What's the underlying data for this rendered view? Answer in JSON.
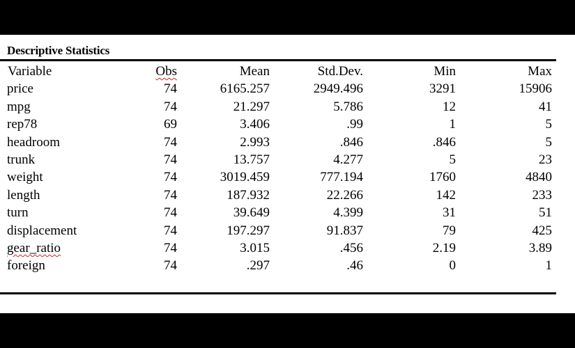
{
  "title": "Descriptive Statistics",
  "columns": [
    "Variable",
    "Obs",
    "Mean",
    "Std.Dev.",
    "Min",
    "Max"
  ],
  "rows": [
    {
      "variable": "price",
      "obs": "74",
      "mean": "6165.257",
      "sd": "2949.496",
      "min": "3291",
      "max": "15906"
    },
    {
      "variable": "mpg",
      "obs": "74",
      "mean": "21.297",
      "sd": "5.786",
      "min": "12",
      "max": "41"
    },
    {
      "variable": "rep78",
      "obs": "69",
      "mean": "3.406",
      "sd": ".99",
      "min": "1",
      "max": "5"
    },
    {
      "variable": "headroom",
      "obs": "74",
      "mean": "2.993",
      "sd": ".846",
      "min": ".846",
      "max": "5"
    },
    {
      "variable": "trunk",
      "obs": "74",
      "mean": "13.757",
      "sd": "4.277",
      "min": "5",
      "max": "23"
    },
    {
      "variable": "weight",
      "obs": "74",
      "mean": "3019.459",
      "sd": "777.194",
      "min": "1760",
      "max": "4840"
    },
    {
      "variable": "length",
      "obs": "74",
      "mean": "187.932",
      "sd": "22.266",
      "min": "142",
      "max": "233"
    },
    {
      "variable": "turn",
      "obs": "74",
      "mean": "39.649",
      "sd": "4.399",
      "min": "31",
      "max": "51"
    },
    {
      "variable": "displacement",
      "obs": "74",
      "mean": "197.297",
      "sd": "91.837",
      "min": "79",
      "max": "425"
    },
    {
      "variable": "gear_ratio",
      "obs": "74",
      "mean": "3.015",
      "sd": ".456",
      "min": "2.19",
      "max": "3.89"
    },
    {
      "variable": "foreign",
      "obs": "74",
      "mean": ".297",
      "sd": ".46",
      "min": "0",
      "max": "1"
    }
  ],
  "spellcheck_flagged": [
    "Obs",
    "gear_ratio"
  ]
}
